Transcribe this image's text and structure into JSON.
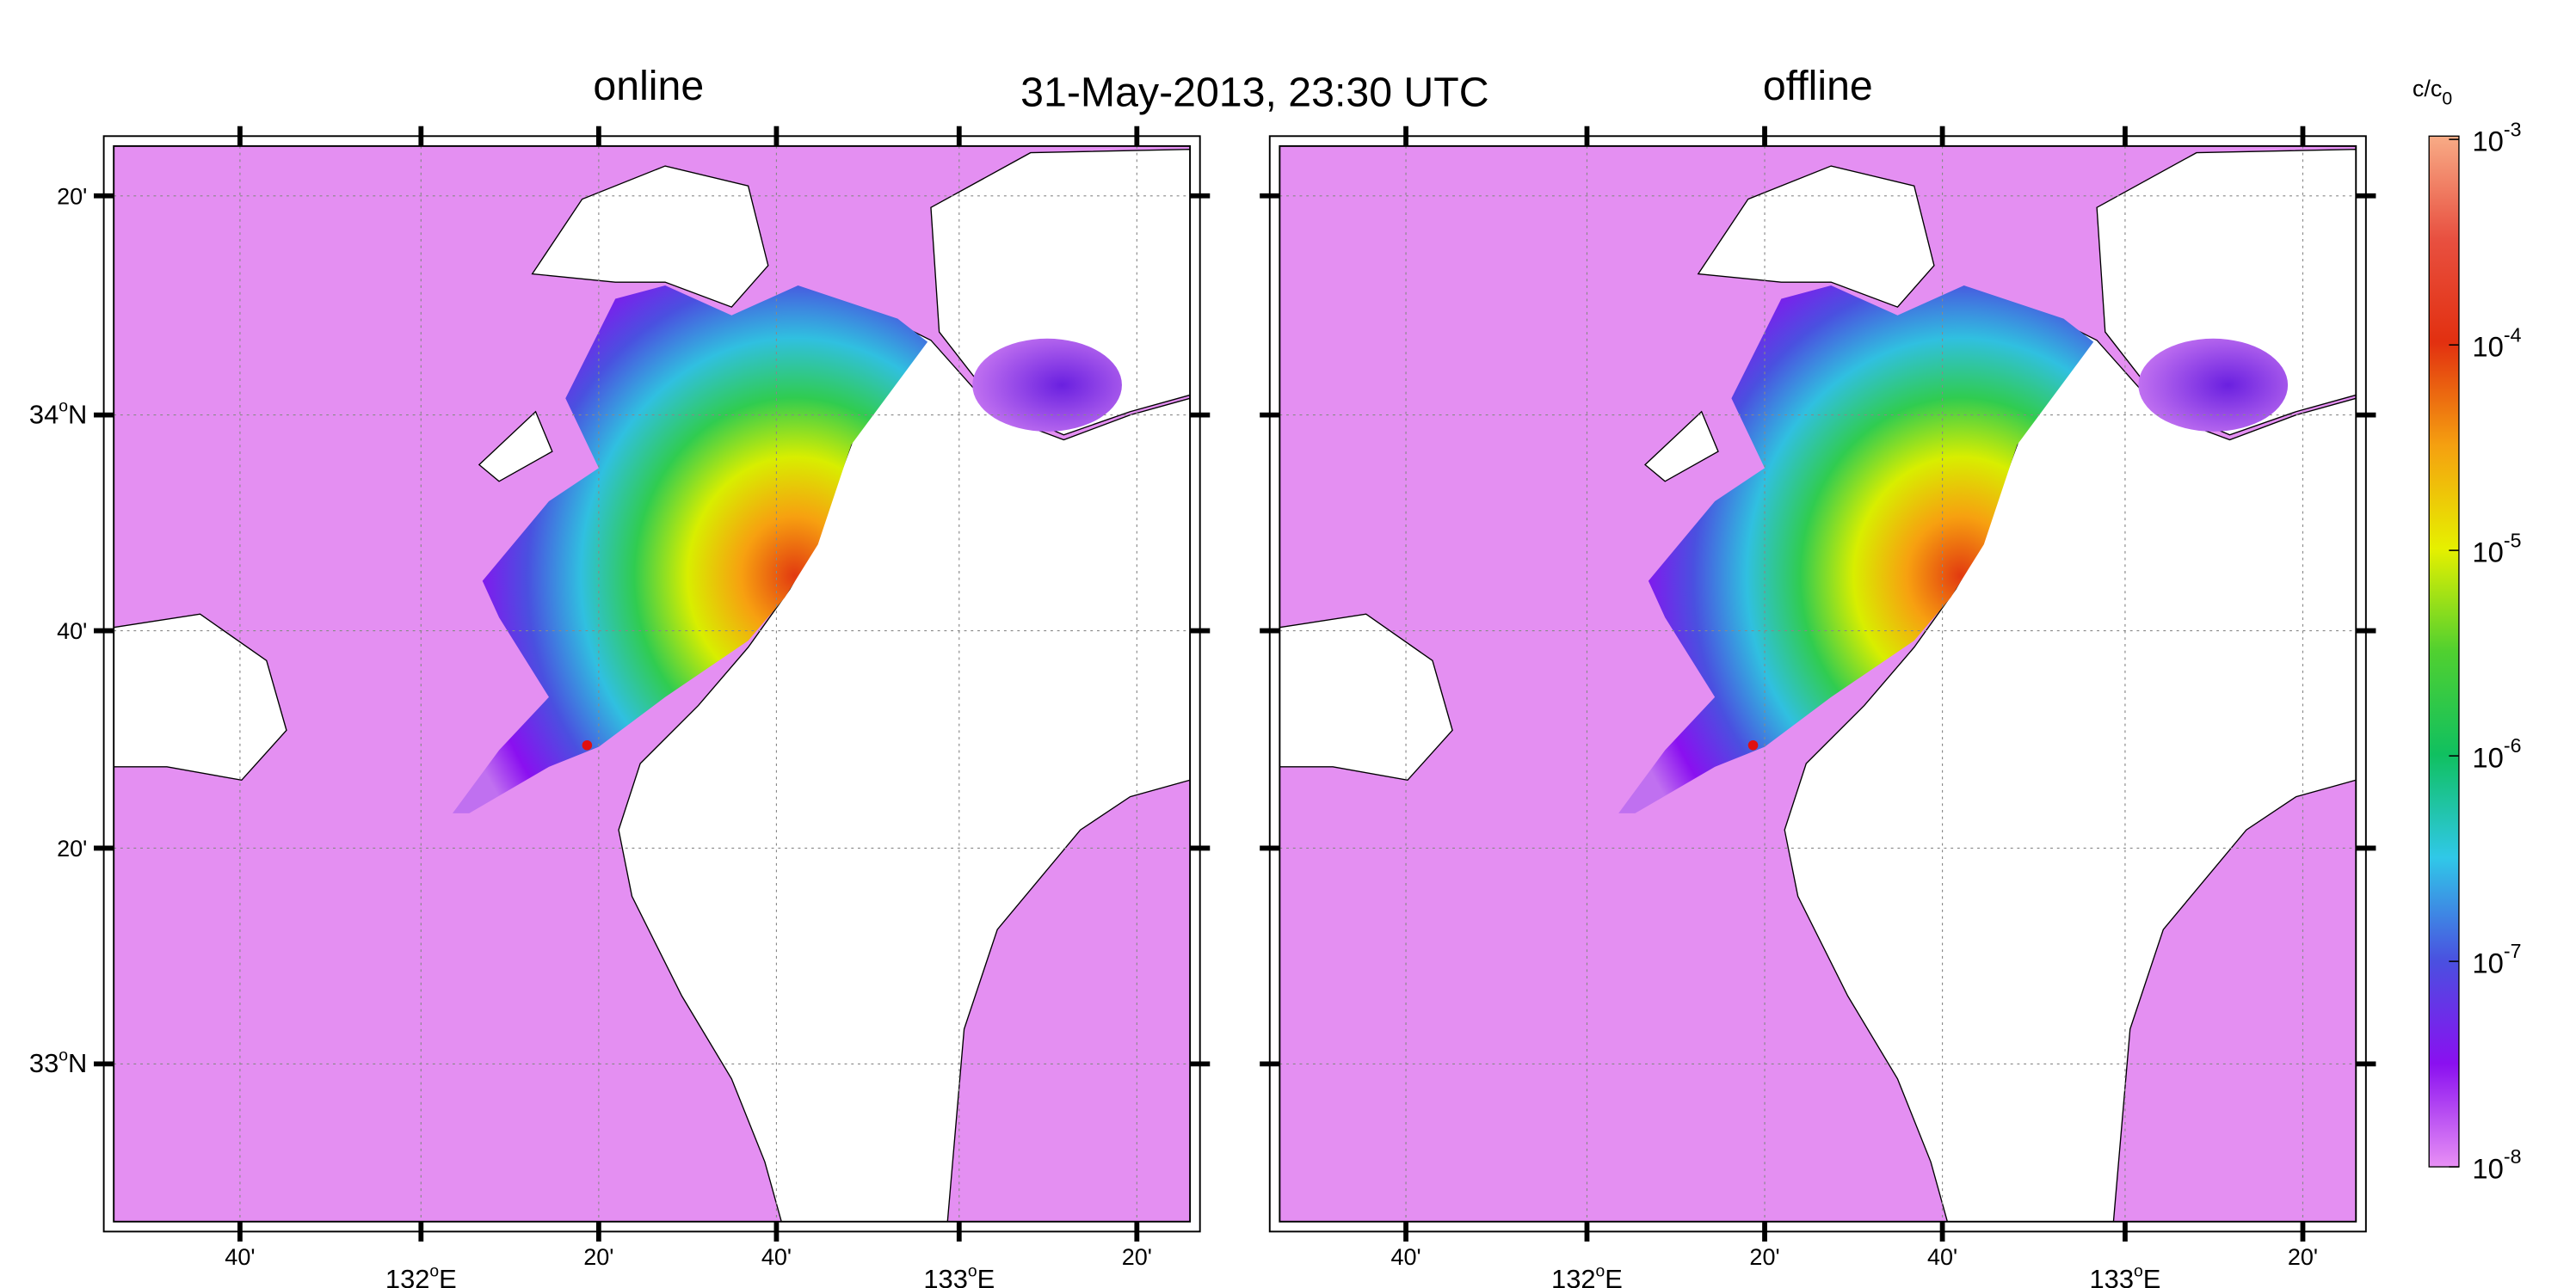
{
  "title": "31-May-2013, 23:30 UTC",
  "panels": [
    {
      "title": "online"
    },
    {
      "title": "offline"
    }
  ],
  "lat_labels": [
    "20'",
    {
      "deg": "34",
      "sup": "o",
      "hemi": "N"
    },
    "40'",
    "20'",
    {
      "deg": "33",
      "sup": "o",
      "hemi": "N"
    }
  ],
  "lon_labels": [
    "40'",
    {
      "deg": "132",
      "sup": "o",
      "hemi": "E"
    },
    "20'",
    "40'",
    {
      "deg": "133",
      "sup": "o",
      "hemi": "E"
    },
    "20'"
  ],
  "colorbar": {
    "label": {
      "text": "c/c",
      "sub": "0"
    },
    "ticks": [
      {
        "base": "10",
        "exp": "-3"
      },
      {
        "base": "10",
        "exp": "-4"
      },
      {
        "base": "10",
        "exp": "-5"
      },
      {
        "base": "10",
        "exp": "-6"
      },
      {
        "base": "10",
        "exp": "-7"
      },
      {
        "base": "10",
        "exp": "-8"
      }
    ]
  }
}
